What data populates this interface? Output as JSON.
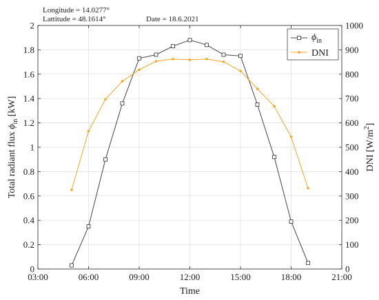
{
  "chart_data": {
    "type": "line",
    "annotations": {
      "longitude": "Longitude = 14.0277°",
      "latitude": "Lattitude = 48.1614°",
      "date": "Date = 18.6.2021"
    },
    "xlabel": "Time",
    "ylabel_left_main": "Total radiant flux ",
    "ylabel_left_sym": "ϕ",
    "ylabel_left_sub": "in",
    "ylabel_left_unit": " [kW]",
    "ylabel_right_main": "DNI [W/m",
    "ylabel_right_sup": "2",
    "ylabel_right_end": "]",
    "x_ticks": [
      "03:00",
      "06:00",
      "09:00",
      "12:00",
      "15:00",
      "18:00",
      "21:00"
    ],
    "x_tick_values": [
      3,
      6,
      9,
      12,
      15,
      18,
      21
    ],
    "xlim": [
      3,
      21
    ],
    "y_left_ticks": [
      "0",
      "0.2",
      "0.4",
      "0.6",
      "0.8",
      "1",
      "1.2",
      "1.4",
      "1.6",
      "1.8",
      "2"
    ],
    "ylim_left": [
      0,
      2
    ],
    "y_right_ticks": [
      "0",
      "100",
      "200",
      "300",
      "400",
      "500",
      "600",
      "700",
      "800",
      "900",
      "1000"
    ],
    "ylim_right": [
      0,
      1000
    ],
    "grid": true,
    "legend_position": "top-right",
    "series": [
      {
        "name_sym": "ϕ",
        "name_sub": "in",
        "axis": "left",
        "color": "#444444",
        "marker": "square",
        "x": [
          5,
          6,
          7,
          8,
          9,
          10,
          11,
          12,
          13,
          14,
          15,
          16,
          17,
          18,
          19
        ],
        "y": [
          0.03,
          0.35,
          0.9,
          1.36,
          1.73,
          1.76,
          1.83,
          1.88,
          1.84,
          1.76,
          1.75,
          1.35,
          0.92,
          0.39,
          0.05
        ]
      },
      {
        "name": "DNI",
        "axis": "right",
        "color": "#f5a623",
        "marker": "dot",
        "x": [
          5,
          6,
          7,
          8,
          9,
          10,
          11,
          12,
          13,
          14,
          15,
          16,
          17,
          18,
          19
        ],
        "y": [
          325,
          566,
          697,
          771,
          818,
          853,
          862,
          859,
          862,
          851,
          813,
          740,
          668,
          543,
          332
        ]
      }
    ]
  }
}
